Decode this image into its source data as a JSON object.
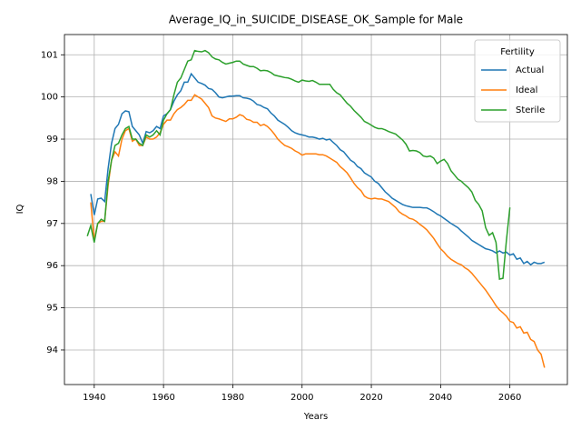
{
  "chart_data": {
    "type": "line",
    "title": "Average_IQ_in_SUICIDE_DISEASE_OK_Sample for Male",
    "x_label": "Years",
    "y_label": "IQ",
    "x": [
      1938,
      1939,
      1940,
      1941,
      1942,
      1943,
      1944,
      1945,
      1946,
      1947,
      1948,
      1949,
      1950,
      1951,
      1952,
      1953,
      1954,
      1955,
      1956,
      1957,
      1958,
      1959,
      1960,
      1961,
      1962,
      1963,
      1964,
      1965,
      1966,
      1967,
      1968,
      1969,
      1970,
      1971,
      1972,
      1973,
      1974,
      1975,
      1976,
      1977,
      1978,
      1979,
      1980,
      1981,
      1982,
      1983,
      1984,
      1985,
      1986,
      1987,
      1988,
      1989,
      1990,
      1991,
      1992,
      1993,
      1994,
      1995,
      1996,
      1997,
      1998,
      1999,
      2000,
      2001,
      2002,
      2003,
      2004,
      2005,
      2006,
      2007,
      2008,
      2009,
      2010,
      2011,
      2012,
      2013,
      2014,
      2015,
      2016,
      2017,
      2018,
      2019,
      2020,
      2021,
      2022,
      2023,
      2024,
      2025,
      2026,
      2027,
      2028,
      2029,
      2030,
      2031,
      2032,
      2033,
      2034,
      2035,
      2036,
      2037,
      2038,
      2039,
      2040,
      2041,
      2042,
      2043,
      2044,
      2045,
      2046,
      2047,
      2048,
      2049,
      2050,
      2051,
      2052,
      2053,
      2054,
      2055,
      2056,
      2057,
      2058,
      2059,
      2060,
      2061,
      2062,
      2063,
      2064,
      2065,
      2066,
      2067,
      2068,
      2069,
      2070
    ],
    "series": [
      {
        "name": "Actual",
        "color": "#1f77b4",
        "values": [
          null,
          97.7,
          97.2,
          97.58,
          97.6,
          97.52,
          98.3,
          98.9,
          99.25,
          99.35,
          99.6,
          99.67,
          99.65,
          99.3,
          99.2,
          99.1,
          98.9,
          99.18,
          99.15,
          99.2,
          99.3,
          99.25,
          99.55,
          99.6,
          99.7,
          99.9,
          100.05,
          100.15,
          100.35,
          100.35,
          100.55,
          100.45,
          100.35,
          100.32,
          100.28,
          100.2,
          100.18,
          100.1,
          100.0,
          99.98,
          100.0,
          100.02,
          100.02,
          100.03,
          100.03,
          99.98,
          99.97,
          99.95,
          99.9,
          99.82,
          99.8,
          99.75,
          99.72,
          99.62,
          99.55,
          99.45,
          99.4,
          99.35,
          99.28,
          99.2,
          99.15,
          99.12,
          99.1,
          99.08,
          99.05,
          99.05,
          99.03,
          99.0,
          99.02,
          98.98,
          99.0,
          98.92,
          98.85,
          98.75,
          98.7,
          98.6,
          98.5,
          98.45,
          98.35,
          98.3,
          98.2,
          98.15,
          98.1,
          98.0,
          97.95,
          97.85,
          97.75,
          97.68,
          97.6,
          97.55,
          97.5,
          97.45,
          97.42,
          97.4,
          97.38,
          97.38,
          97.38,
          97.37,
          97.37,
          97.33,
          97.28,
          97.22,
          97.18,
          97.12,
          97.06,
          97.0,
          96.95,
          96.9,
          96.82,
          96.75,
          96.68,
          96.6,
          96.55,
          96.5,
          96.45,
          96.4,
          96.38,
          96.35,
          96.3,
          96.35,
          96.3,
          96.32,
          96.25,
          96.28,
          96.15,
          96.18,
          96.05,
          96.1,
          96.02,
          96.08,
          96.05,
          96.05,
          96.08
        ]
      },
      {
        "name": "Ideal",
        "color": "#ff7f0e",
        "values": [
          null,
          97.5,
          96.6,
          97.0,
          97.05,
          97.05,
          97.9,
          98.5,
          98.7,
          98.6,
          99.0,
          99.2,
          99.25,
          98.95,
          99.0,
          98.85,
          98.85,
          99.05,
          99.0,
          99.0,
          99.05,
          99.15,
          99.35,
          99.45,
          99.45,
          99.6,
          99.7,
          99.75,
          99.82,
          99.92,
          99.92,
          100.05,
          100.0,
          99.95,
          99.85,
          99.75,
          99.55,
          99.5,
          99.48,
          99.45,
          99.42,
          99.48,
          99.48,
          99.52,
          99.58,
          99.55,
          99.47,
          99.45,
          99.4,
          99.4,
          99.32,
          99.35,
          99.3,
          99.22,
          99.12,
          99.0,
          98.92,
          98.85,
          98.82,
          98.78,
          98.72,
          98.68,
          98.62,
          98.65,
          98.65,
          98.65,
          98.65,
          98.63,
          98.63,
          98.6,
          98.55,
          98.5,
          98.45,
          98.35,
          98.28,
          98.2,
          98.08,
          97.95,
          97.85,
          97.78,
          97.65,
          97.6,
          97.58,
          97.6,
          97.58,
          97.58,
          97.55,
          97.52,
          97.45,
          97.38,
          97.28,
          97.22,
          97.18,
          97.12,
          97.1,
          97.05,
          96.98,
          96.92,
          96.85,
          96.75,
          96.65,
          96.52,
          96.4,
          96.32,
          96.22,
          96.15,
          96.1,
          96.05,
          96.02,
          95.95,
          95.9,
          95.82,
          95.72,
          95.62,
          95.52,
          95.42,
          95.3,
          95.18,
          95.05,
          94.95,
          94.88,
          94.8,
          94.68,
          94.65,
          94.52,
          94.55,
          94.4,
          94.42,
          94.25,
          94.2,
          94.0,
          93.9,
          93.58
        ]
      },
      {
        "name": "Sterile",
        "color": "#2ca02c",
        "values": [
          96.7,
          96.95,
          96.55,
          97.0,
          97.1,
          97.05,
          98.0,
          98.5,
          98.85,
          98.9,
          99.1,
          99.25,
          99.3,
          99.0,
          99.0,
          98.9,
          98.85,
          99.1,
          99.05,
          99.1,
          99.2,
          99.1,
          99.45,
          99.6,
          99.7,
          100.05,
          100.35,
          100.45,
          100.65,
          100.85,
          100.88,
          101.1,
          101.08,
          101.07,
          101.1,
          101.05,
          100.95,
          100.9,
          100.88,
          100.82,
          100.78,
          100.8,
          100.82,
          100.85,
          100.85,
          100.78,
          100.75,
          100.72,
          100.72,
          100.68,
          100.62,
          100.63,
          100.62,
          100.58,
          100.52,
          100.5,
          100.48,
          100.46,
          100.45,
          100.42,
          100.38,
          100.35,
          100.4,
          100.38,
          100.37,
          100.39,
          100.35,
          100.3,
          100.3,
          100.3,
          100.3,
          100.18,
          100.1,
          100.05,
          99.95,
          99.85,
          99.78,
          99.68,
          99.6,
          99.52,
          99.42,
          99.38,
          99.33,
          99.28,
          99.25,
          99.25,
          99.22,
          99.18,
          99.15,
          99.12,
          99.05,
          98.98,
          98.88,
          98.72,
          98.73,
          98.72,
          98.68,
          98.6,
          98.58,
          98.6,
          98.55,
          98.42,
          98.48,
          98.52,
          98.42,
          98.25,
          98.15,
          98.05,
          98.0,
          97.92,
          97.85,
          97.75,
          97.55,
          97.45,
          97.3,
          96.9,
          96.72,
          96.78,
          96.55,
          95.68,
          95.7,
          96.6,
          97.38,
          null,
          null,
          null,
          null,
          null,
          null,
          null,
          null,
          null,
          null
        ]
      }
    ],
    "xlim": [
      1931.4,
      2076.6
    ],
    "xticks": [
      1940,
      1960,
      1980,
      2000,
      2020,
      2040,
      2060
    ],
    "ylim": [
      93.18,
      101.48
    ],
    "yticks": [
      94,
      95,
      96,
      97,
      98,
      99,
      100,
      101
    ],
    "grid": true,
    "legend_title": "Fertility",
    "legend_position": "upper right"
  }
}
